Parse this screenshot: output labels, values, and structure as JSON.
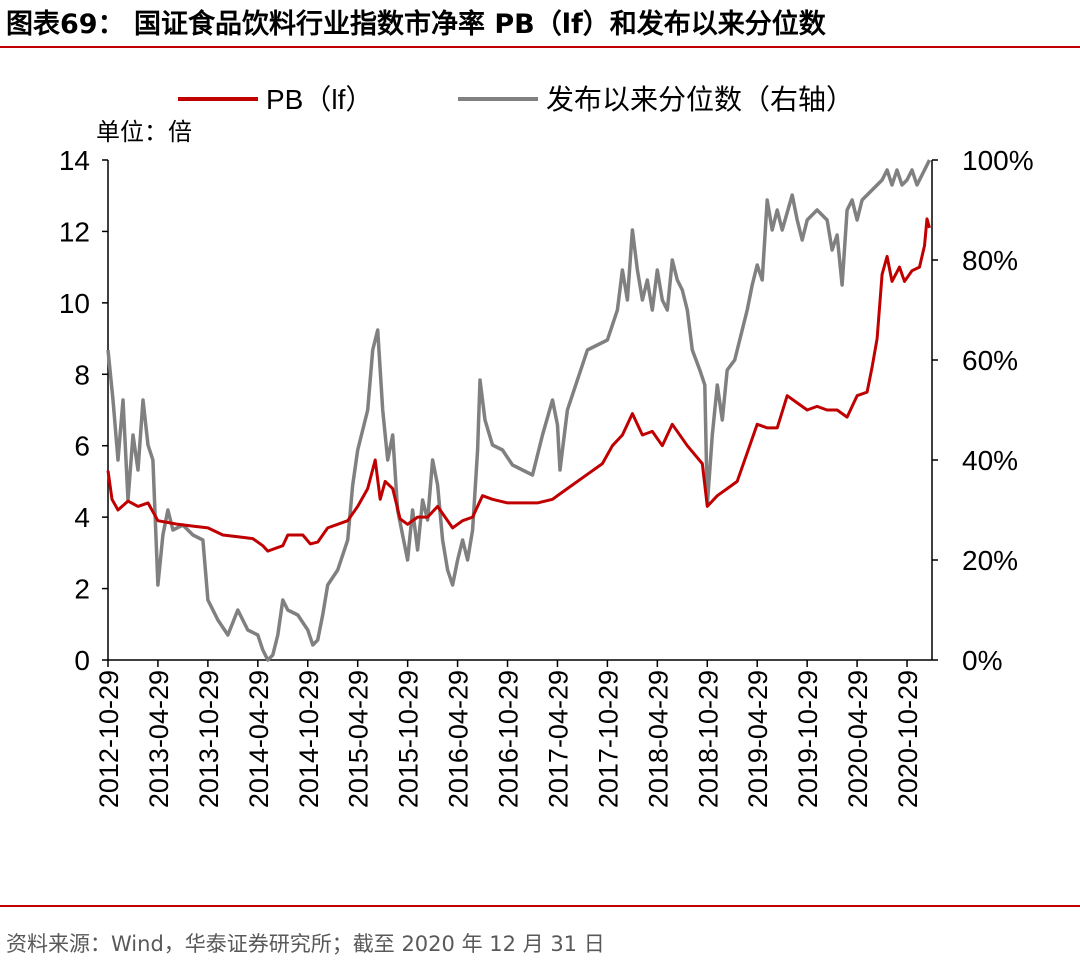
{
  "header": {
    "title": "图表69：  国证食品饮料行业指数市净率 PB（lf）和发布以来分位数"
  },
  "footer": {
    "source": "资料来源：Wind，华泰证券研究所；截至 2020 年 12 月 31 日"
  },
  "colors": {
    "pb_line": "#c00000",
    "pct_line": "#808080",
    "accent_rule": "#c00000"
  },
  "chart_data": {
    "type": "line",
    "unit_label": "单位：倍",
    "x_tick_labels": [
      "2012-10-29",
      "2013-04-29",
      "2013-10-29",
      "2014-04-29",
      "2014-10-29",
      "2015-04-29",
      "2015-10-29",
      "2016-04-29",
      "2016-10-29",
      "2017-04-29",
      "2017-10-29",
      "2018-04-29",
      "2018-10-29",
      "2019-04-29",
      "2019-10-29",
      "2020-04-29",
      "2020-10-29"
    ],
    "left_axis": {
      "min": 0,
      "max": 14,
      "ticks": [
        "0",
        "2",
        "4",
        "6",
        "8",
        "10",
        "12",
        "14"
      ]
    },
    "right_axis": {
      "min": 0,
      "max": 100,
      "ticks": [
        "0%",
        "20%",
        "40%",
        "60%",
        "80%",
        "100%"
      ]
    },
    "series": [
      {
        "name": "PB（lf）",
        "axis": "left",
        "points": [
          [
            0,
            5.3
          ],
          [
            0.08,
            4.5
          ],
          [
            0.2,
            4.2
          ],
          [
            0.4,
            4.45
          ],
          [
            0.6,
            4.3
          ],
          [
            0.8,
            4.4
          ],
          [
            1.0,
            3.9
          ],
          [
            1.2,
            3.85
          ],
          [
            1.4,
            3.8
          ],
          [
            1.7,
            3.75
          ],
          [
            2.0,
            3.7
          ],
          [
            2.3,
            3.5
          ],
          [
            2.6,
            3.45
          ],
          [
            2.9,
            3.4
          ],
          [
            3.1,
            3.2
          ],
          [
            3.2,
            3.05
          ],
          [
            3.5,
            3.2
          ],
          [
            3.6,
            3.5
          ],
          [
            3.9,
            3.5
          ],
          [
            4.05,
            3.25
          ],
          [
            4.2,
            3.3
          ],
          [
            4.4,
            3.7
          ],
          [
            4.6,
            3.8
          ],
          [
            4.8,
            3.9
          ],
          [
            5.0,
            4.3
          ],
          [
            5.2,
            4.8
          ],
          [
            5.35,
            5.6
          ],
          [
            5.45,
            4.5
          ],
          [
            5.55,
            5.0
          ],
          [
            5.7,
            4.8
          ],
          [
            5.85,
            3.95
          ],
          [
            6.0,
            3.8
          ],
          [
            6.2,
            4.0
          ],
          [
            6.4,
            4.0
          ],
          [
            6.6,
            4.3
          ],
          [
            6.9,
            3.7
          ],
          [
            7.1,
            3.9
          ],
          [
            7.3,
            4.0
          ],
          [
            7.5,
            4.6
          ],
          [
            7.7,
            4.5
          ],
          [
            8.0,
            4.4
          ],
          [
            8.3,
            4.4
          ],
          [
            8.6,
            4.4
          ],
          [
            8.9,
            4.5
          ],
          [
            9.1,
            4.7
          ],
          [
            9.3,
            4.9
          ],
          [
            9.6,
            5.2
          ],
          [
            9.9,
            5.5
          ],
          [
            10.1,
            6.0
          ],
          [
            10.3,
            6.3
          ],
          [
            10.5,
            6.9
          ],
          [
            10.7,
            6.3
          ],
          [
            10.9,
            6.4
          ],
          [
            11.1,
            6.0
          ],
          [
            11.3,
            6.6
          ],
          [
            11.6,
            6.0
          ],
          [
            11.9,
            5.5
          ],
          [
            12.0,
            4.3
          ],
          [
            12.2,
            4.6
          ],
          [
            12.4,
            4.8
          ],
          [
            12.6,
            5.0
          ],
          [
            12.8,
            5.8
          ],
          [
            13.0,
            6.6
          ],
          [
            13.2,
            6.5
          ],
          [
            13.4,
            6.5
          ],
          [
            13.6,
            7.4
          ],
          [
            13.8,
            7.2
          ],
          [
            14.0,
            7.0
          ],
          [
            14.2,
            7.1
          ],
          [
            14.4,
            7.0
          ],
          [
            14.6,
            7.0
          ],
          [
            14.8,
            6.8
          ],
          [
            15.0,
            7.4
          ],
          [
            15.2,
            7.5
          ],
          [
            15.3,
            8.2
          ],
          [
            15.4,
            9.0
          ],
          [
            15.5,
            10.8
          ],
          [
            15.6,
            11.3
          ],
          [
            15.7,
            10.6
          ],
          [
            15.85,
            11.0
          ],
          [
            15.95,
            10.6
          ],
          [
            16.1,
            10.9
          ],
          [
            16.25,
            11.0
          ],
          [
            16.35,
            11.6
          ],
          [
            16.4,
            12.35
          ],
          [
            16.45,
            12.1
          ]
        ]
      },
      {
        "name": "发布以来分位数（右轴）",
        "axis": "right",
        "points": [
          [
            0,
            0.62
          ],
          [
            0.1,
            0.52
          ],
          [
            0.2,
            0.4
          ],
          [
            0.3,
            0.52
          ],
          [
            0.4,
            0.32
          ],
          [
            0.5,
            0.45
          ],
          [
            0.6,
            0.38
          ],
          [
            0.7,
            0.52
          ],
          [
            0.8,
            0.43
          ],
          [
            0.9,
            0.4
          ],
          [
            1.0,
            0.15
          ],
          [
            1.1,
            0.25
          ],
          [
            1.2,
            0.3
          ],
          [
            1.3,
            0.26
          ],
          [
            1.5,
            0.27
          ],
          [
            1.7,
            0.25
          ],
          [
            1.9,
            0.24
          ],
          [
            2.0,
            0.12
          ],
          [
            2.2,
            0.08
          ],
          [
            2.4,
            0.05
          ],
          [
            2.6,
            0.1
          ],
          [
            2.8,
            0.06
          ],
          [
            3.0,
            0.05
          ],
          [
            3.1,
            0.02
          ],
          [
            3.2,
            0.0
          ],
          [
            3.3,
            0.01
          ],
          [
            3.4,
            0.05
          ],
          [
            3.5,
            0.12
          ],
          [
            3.6,
            0.1
          ],
          [
            3.8,
            0.09
          ],
          [
            4.0,
            0.06
          ],
          [
            4.1,
            0.03
          ],
          [
            4.2,
            0.04
          ],
          [
            4.3,
            0.09
          ],
          [
            4.4,
            0.15
          ],
          [
            4.6,
            0.18
          ],
          [
            4.8,
            0.24
          ],
          [
            4.9,
            0.35
          ],
          [
            5.0,
            0.42
          ],
          [
            5.2,
            0.5
          ],
          [
            5.3,
            0.62
          ],
          [
            5.4,
            0.66
          ],
          [
            5.5,
            0.5
          ],
          [
            5.6,
            0.4
          ],
          [
            5.7,
            0.45
          ],
          [
            5.8,
            0.3
          ],
          [
            5.9,
            0.25
          ],
          [
            6.0,
            0.2
          ],
          [
            6.1,
            0.3
          ],
          [
            6.2,
            0.22
          ],
          [
            6.3,
            0.32
          ],
          [
            6.4,
            0.28
          ],
          [
            6.5,
            0.4
          ],
          [
            6.6,
            0.35
          ],
          [
            6.7,
            0.24
          ],
          [
            6.8,
            0.18
          ],
          [
            6.9,
            0.15
          ],
          [
            7.0,
            0.2
          ],
          [
            7.1,
            0.24
          ],
          [
            7.2,
            0.2
          ],
          [
            7.3,
            0.26
          ],
          [
            7.4,
            0.42
          ],
          [
            7.45,
            0.56
          ],
          [
            7.55,
            0.48
          ],
          [
            7.7,
            0.43
          ],
          [
            7.9,
            0.42
          ],
          [
            8.1,
            0.39
          ],
          [
            8.3,
            0.38
          ],
          [
            8.5,
            0.37
          ],
          [
            8.7,
            0.45
          ],
          [
            8.9,
            0.52
          ],
          [
            9.0,
            0.47
          ],
          [
            9.05,
            0.38
          ],
          [
            9.2,
            0.5
          ],
          [
            9.4,
            0.56
          ],
          [
            9.6,
            0.62
          ],
          [
            9.8,
            0.63
          ],
          [
            10.0,
            0.64
          ],
          [
            10.2,
            0.7
          ],
          [
            10.3,
            0.78
          ],
          [
            10.4,
            0.72
          ],
          [
            10.5,
            0.86
          ],
          [
            10.6,
            0.78
          ],
          [
            10.7,
            0.72
          ],
          [
            10.8,
            0.76
          ],
          [
            10.9,
            0.7
          ],
          [
            11.0,
            0.78
          ],
          [
            11.1,
            0.72
          ],
          [
            11.2,
            0.7
          ],
          [
            11.3,
            0.8
          ],
          [
            11.4,
            0.76
          ],
          [
            11.5,
            0.74
          ],
          [
            11.6,
            0.7
          ],
          [
            11.7,
            0.62
          ],
          [
            11.85,
            0.58
          ],
          [
            11.95,
            0.55
          ],
          [
            12.0,
            0.31
          ],
          [
            12.1,
            0.45
          ],
          [
            12.2,
            0.55
          ],
          [
            12.3,
            0.48
          ],
          [
            12.4,
            0.58
          ],
          [
            12.55,
            0.6
          ],
          [
            12.7,
            0.66
          ],
          [
            12.8,
            0.7
          ],
          [
            12.9,
            0.75
          ],
          [
            13.0,
            0.79
          ],
          [
            13.1,
            0.76
          ],
          [
            13.2,
            0.92
          ],
          [
            13.3,
            0.86
          ],
          [
            13.4,
            0.9
          ],
          [
            13.5,
            0.86
          ],
          [
            13.7,
            0.93
          ],
          [
            13.8,
            0.88
          ],
          [
            13.9,
            0.84
          ],
          [
            14.0,
            0.88
          ],
          [
            14.2,
            0.9
          ],
          [
            14.4,
            0.88
          ],
          [
            14.5,
            0.82
          ],
          [
            14.6,
            0.85
          ],
          [
            14.7,
            0.75
          ],
          [
            14.8,
            0.9
          ],
          [
            14.9,
            0.92
          ],
          [
            15.0,
            0.88
          ],
          [
            15.1,
            0.92
          ],
          [
            15.2,
            0.93
          ],
          [
            15.3,
            0.94
          ],
          [
            15.4,
            0.95
          ],
          [
            15.5,
            0.96
          ],
          [
            15.6,
            0.98
          ],
          [
            15.7,
            0.95
          ],
          [
            15.8,
            0.98
          ],
          [
            15.9,
            0.95
          ],
          [
            16.0,
            0.96
          ],
          [
            16.1,
            0.98
          ],
          [
            16.2,
            0.95
          ],
          [
            16.3,
            0.97
          ],
          [
            16.45,
            1.0
          ]
        ]
      }
    ]
  }
}
